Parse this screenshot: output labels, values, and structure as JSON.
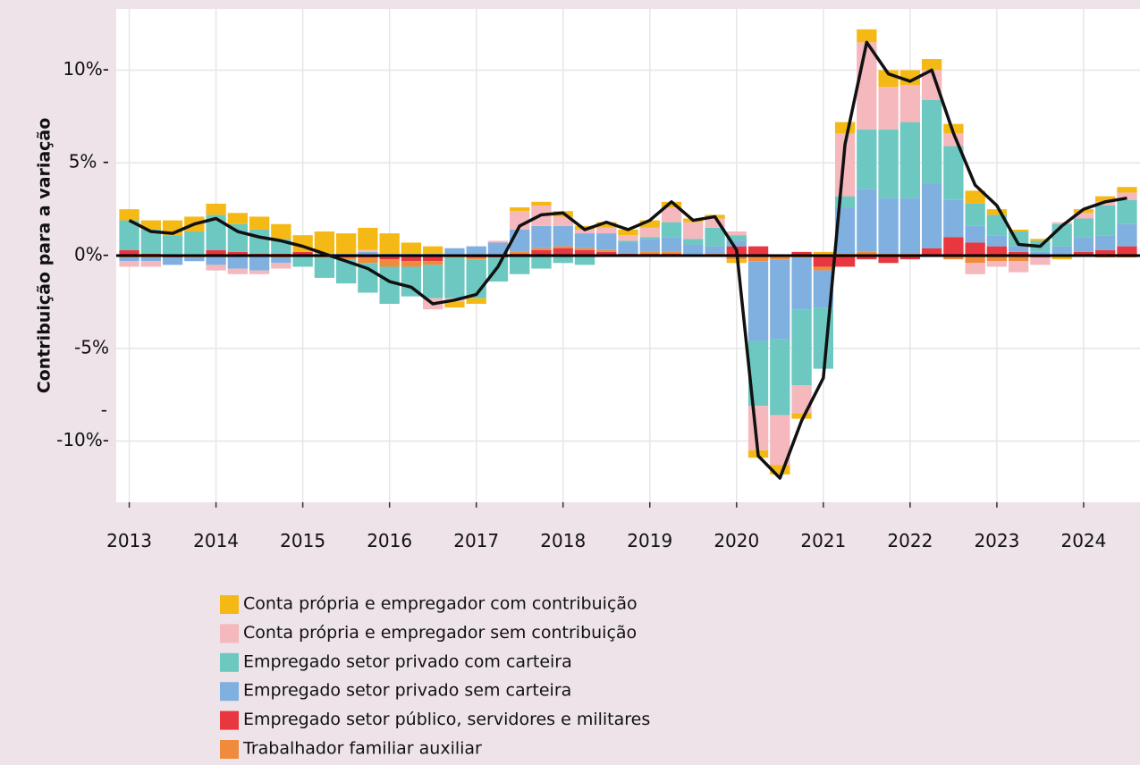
{
  "chart_data": {
    "type": "bar",
    "stacked": true,
    "y_label": "Contribuição para a variação",
    "annotations": [
      "-"
    ],
    "x": [
      2013,
      2013.25,
      2013.5,
      2013.75,
      2014,
      2014.25,
      2014.5,
      2014.75,
      2015,
      2015.25,
      2015.5,
      2015.75,
      2016,
      2016.25,
      2016.5,
      2016.75,
      2017,
      2017.25,
      2017.5,
      2017.75,
      2018,
      2018.25,
      2018.5,
      2018.75,
      2019,
      2019.25,
      2019.5,
      2019.75,
      2020,
      2020.25,
      2020.5,
      2020.75,
      2021,
      2021.25,
      2021.5,
      2021.75,
      2022,
      2022.25,
      2022.5,
      2022.75,
      2023,
      2023.25,
      2023.5,
      2023.75,
      2024,
      2024.25,
      2024.5
    ],
    "xlim": [
      2012.85,
      2024.65
    ],
    "xticks": [
      2013,
      2014,
      2015,
      2016,
      2017,
      2018,
      2019,
      2020,
      2021,
      2022,
      2023,
      2024
    ],
    "ylim": [
      -13.3,
      13.3
    ],
    "yticks": [
      {
        "value": 10,
        "label": "10%-"
      },
      {
        "value": 5,
        "label": "5% -"
      },
      {
        "value": 0,
        "label": "0%-"
      },
      {
        "value": -5,
        "label": "-5%"
      },
      {
        "value": -10,
        "label": "-10%-"
      }
    ],
    "grid": true,
    "series": [
      {
        "name": "Empregado setor público, servidores e militares",
        "color": "#e8373f",
        "values": [
          0.3,
          0.1,
          -0.1,
          0,
          0.3,
          0.2,
          0.1,
          0.1,
          0.2,
          0,
          -0.1,
          -0.1,
          -0.2,
          -0.3,
          -0.3,
          0,
          -0.1,
          -0.1,
          0.1,
          0.3,
          0.4,
          0.3,
          0.2,
          0.1,
          0.1,
          0.1,
          0,
          0,
          0.5,
          0.5,
          0,
          0.2,
          -0.6,
          -0.6,
          -0.2,
          -0.4,
          -0.2,
          0.4,
          1.0,
          0.7,
          0.5,
          0.2,
          -0.1,
          0,
          0.2,
          0.3,
          0.5
        ]
      },
      {
        "name": "Trabalhador familiar auxiliar",
        "color": "#f08a3c",
        "values": [
          -0.1,
          -0.1,
          0,
          -0.1,
          0,
          0,
          0,
          -0.1,
          0,
          -0.1,
          -0.1,
          -0.3,
          -0.4,
          -0.3,
          -0.2,
          -0.1,
          -0.1,
          0,
          0.1,
          0.1,
          0.1,
          0.1,
          0.1,
          0,
          0.1,
          0.1,
          0,
          0.1,
          -0.2,
          -0.3,
          -0.2,
          -0.1,
          -0.2,
          0.1,
          0.2,
          0.1,
          0.1,
          0,
          -0.2,
          -0.4,
          -0.3,
          -0.3,
          0,
          0,
          0,
          -0.1,
          -0.1
        ]
      },
      {
        "name": "Empregado setor privado sem carteira",
        "color": "#7fb0e0",
        "values": [
          -0.2,
          -0.2,
          -0.4,
          -0.2,
          -0.5,
          -0.7,
          -0.8,
          -0.3,
          0,
          0.1,
          0.1,
          0.2,
          0.1,
          0.1,
          0.1,
          0.4,
          0.5,
          0.7,
          1.2,
          1.2,
          1.1,
          0.8,
          0.9,
          0.6,
          0.7,
          0.8,
          0.6,
          0.4,
          0.3,
          -4.3,
          -4.3,
          -2.8,
          -2.0,
          2.5,
          3.4,
          3.0,
          3.0,
          3.5,
          2.0,
          0.9,
          0.6,
          0.3,
          0.2,
          0.5,
          0.8,
          0.8,
          1.2
        ]
      },
      {
        "name": "Empregado setor privado com carteira",
        "color": "#6cc8c0",
        "values": [
          1.6,
          1.3,
          1.1,
          1.3,
          1.9,
          1.5,
          1.3,
          0.8,
          -0.6,
          -1.1,
          -1.3,
          -1.6,
          -2.0,
          -1.6,
          -1.8,
          -2.2,
          -2.1,
          -1.3,
          -1.0,
          -0.7,
          -0.4,
          -0.5,
          0,
          0.1,
          0.1,
          0.8,
          0.3,
          1.0,
          0.3,
          -3.5,
          -4.1,
          -4.1,
          -3.3,
          0.6,
          3.2,
          3.7,
          4.1,
          4.5,
          2.9,
          1.2,
          1.1,
          0.8,
          0.6,
          1.2,
          1.0,
          1.6,
          1.3
        ]
      },
      {
        "name": "Conta própria e empregador sem contribuição",
        "color": "#f4b8bd",
        "values": [
          -0.3,
          -0.3,
          0,
          0,
          -0.3,
          -0.3,
          -0.2,
          -0.3,
          0,
          0,
          0,
          0.1,
          0,
          0,
          -0.6,
          -0.2,
          0,
          0.1,
          1.0,
          1.1,
          0.5,
          0.2,
          0.3,
          0.3,
          0.5,
          0.8,
          0.9,
          0.5,
          0.2,
          -2.4,
          -2.7,
          -1.5,
          0,
          3.4,
          4.7,
          2.3,
          2.0,
          1.6,
          0.7,
          -0.6,
          -0.3,
          -0.6,
          -0.4,
          0.1,
          0.3,
          0.2,
          0.4
        ]
      },
      {
        "name": "Conta própria e empregador com contribuição",
        "color": "#f5b915",
        "values": [
          0.6,
          0.5,
          0.8,
          0.8,
          0.6,
          0.6,
          0.7,
          0.8,
          0.9,
          1.2,
          1.1,
          1.2,
          1.1,
          0.6,
          0.4,
          -0.3,
          -0.3,
          0,
          0.2,
          0.2,
          0.3,
          0.2,
          0.3,
          0.3,
          0.4,
          0.3,
          0.2,
          0.2,
          -0.2,
          -0.4,
          -0.5,
          -0.3,
          0.2,
          0.6,
          0.7,
          0.9,
          0.8,
          0.6,
          0.5,
          0.7,
          0.3,
          0.1,
          0.1,
          -0.2,
          0.2,
          0.3,
          0.3
        ]
      }
    ],
    "line": {
      "color": "#111111",
      "values": [
        1.9,
        1.3,
        1.2,
        1.7,
        2.0,
        1.3,
        1.0,
        0.8,
        0.5,
        0.1,
        -0.3,
        -0.7,
        -1.4,
        -1.7,
        -2.6,
        -2.4,
        -2.1,
        -0.6,
        1.6,
        2.2,
        2.3,
        1.4,
        1.8,
        1.4,
        1.9,
        2.9,
        1.9,
        2.1,
        0.3,
        -10.8,
        -12.0,
        -8.9,
        -6.6,
        6.0,
        11.5,
        9.8,
        9.4,
        10.0,
        6.6,
        3.8,
        2.7,
        0.6,
        0.5,
        1.6,
        2.5,
        2.9,
        3.1
      ]
    },
    "legend_order": [
      5,
      4,
      3,
      2,
      0,
      1
    ]
  }
}
